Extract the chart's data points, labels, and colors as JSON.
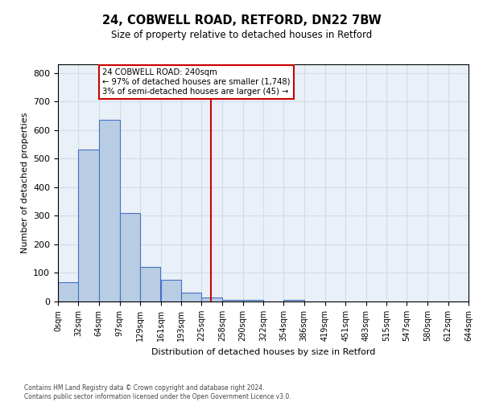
{
  "title": "24, COBWELL ROAD, RETFORD, DN22 7BW",
  "subtitle": "Size of property relative to detached houses in Retford",
  "xlabel": "Distribution of detached houses by size in Retford",
  "ylabel": "Number of detached properties",
  "bin_edges": [
    0,
    32,
    64,
    97,
    129,
    161,
    193,
    225,
    258,
    290,
    322,
    354,
    386,
    419,
    451,
    483,
    515,
    547,
    580,
    612,
    644
  ],
  "bar_heights": [
    67,
    532,
    635,
    310,
    120,
    77,
    30,
    14,
    7,
    5,
    0,
    5,
    0,
    0,
    0,
    0,
    0,
    0,
    0,
    0
  ],
  "bar_color": "#b8cce4",
  "bar_edge_color": "#4472c4",
  "vline_x": 240,
  "vline_color": "#cc0000",
  "annotation_title": "24 COBWELL ROAD: 240sqm",
  "annotation_line1": "← 97% of detached houses are smaller (1,748)",
  "annotation_line2": "3% of semi-detached houses are larger (45) →",
  "annotation_box_color": "#cc0000",
  "ylim": [
    0,
    830
  ],
  "yticks": [
    0,
    100,
    200,
    300,
    400,
    500,
    600,
    700,
    800
  ],
  "grid_color": "#d0dce8",
  "background_color": "#eaf0f8",
  "footer1": "Contains HM Land Registry data © Crown copyright and database right 2024.",
  "footer2": "Contains public sector information licensed under the Open Government Licence v3.0."
}
